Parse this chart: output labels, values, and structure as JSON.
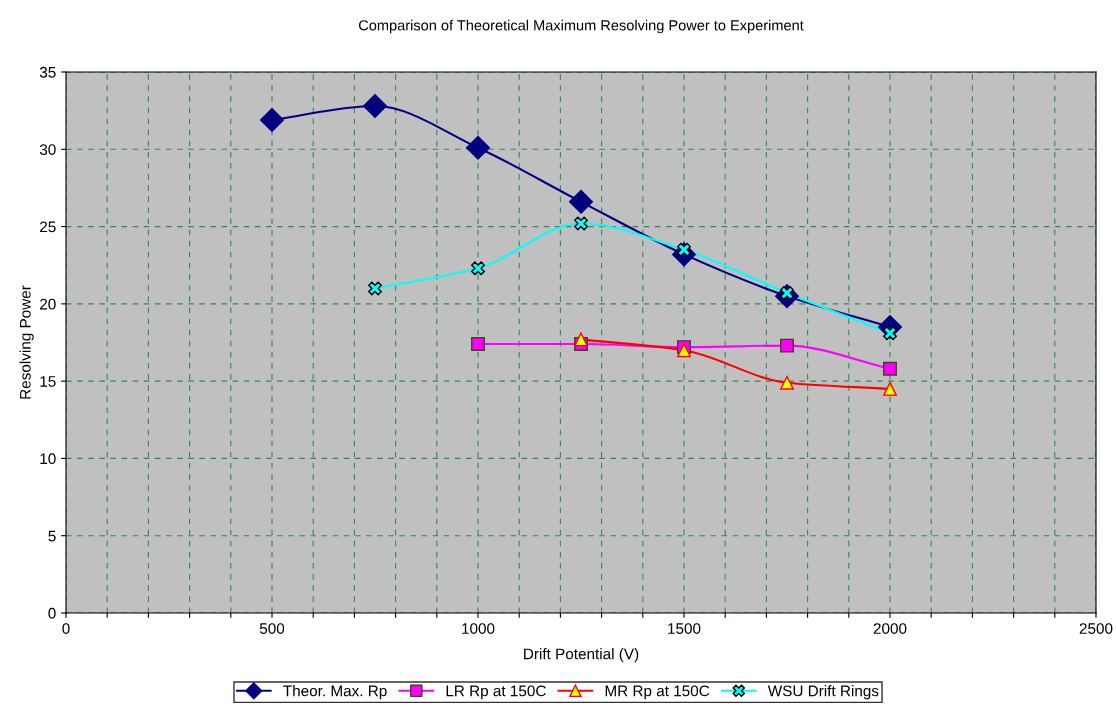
{
  "chart_data": {
    "type": "line",
    "title": "Comparison of Theoretical Maximum Resolving Power to Experiment",
    "xlabel": "Drift Potential (V)",
    "ylabel": "Resolving Power",
    "x": [
      500,
      750,
      1000,
      1250,
      1500,
      1750,
      2000
    ],
    "series": [
      {
        "name": "Theor. Max. Rp",
        "color": "#000080",
        "marker": "diamond",
        "values": [
          31.9,
          32.8,
          30.1,
          26.6,
          23.2,
          20.5,
          18.5
        ]
      },
      {
        "name": "LR Rp at 150C",
        "color": "#ff00ff",
        "marker": "square",
        "values": [
          null,
          null,
          17.4,
          17.4,
          17.2,
          17.3,
          15.8
        ]
      },
      {
        "name": "MR Rp at 150C",
        "color": "#ff0000",
        "marker": "triangle",
        "values": [
          null,
          null,
          null,
          17.7,
          17.0,
          14.9,
          14.5
        ]
      },
      {
        "name": "WSU Drift Rings",
        "color": "#00ffff",
        "marker": "cross",
        "values": [
          null,
          21.0,
          22.3,
          25.2,
          23.5,
          20.7,
          18.1
        ]
      }
    ],
    "xlim": [
      0,
      2500
    ],
    "ylim": [
      0,
      35
    ],
    "xticks": [
      0,
      {
        "value": 100,
        "label": null
      },
      {
        "value": 200,
        "label": null
      },
      {
        "value": 300,
        "label": null
      },
      {
        "value": 400,
        "label": null
      },
      500,
      {
        "value": 600,
        "label": null
      },
      {
        "value": 700,
        "label": null
      },
      {
        "value": 800,
        "label": null
      },
      {
        "value": 900,
        "label": null
      },
      1000,
      {
        "value": 1100,
        "label": null
      },
      {
        "value": 1200,
        "label": null
      },
      {
        "value": 1300,
        "label": null
      },
      {
        "value": 1400,
        "label": null
      },
      1500,
      {
        "value": 1600,
        "label": null
      },
      {
        "value": 1700,
        "label": null
      },
      {
        "value": 1800,
        "label": null
      },
      {
        "value": 1900,
        "label": null
      },
      2000,
      {
        "value": 2100,
        "label": null
      },
      {
        "value": 2200,
        "label": null
      },
      {
        "value": 2300,
        "label": null
      },
      {
        "value": 2400,
        "label": null
      },
      2500
    ],
    "yticks": [
      0,
      5,
      10,
      15,
      20,
      25,
      30,
      35
    ],
    "grid": true,
    "legend": "bottom",
    "line_style": "solid"
  }
}
